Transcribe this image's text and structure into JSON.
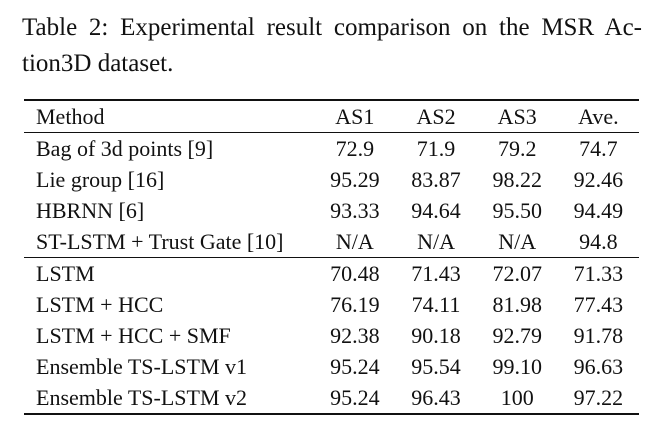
{
  "caption": {
    "line1": "Table 2: Experimental result comparison on the MSR Ac-",
    "line2": "tion3D dataset."
  },
  "table": {
    "headers": [
      "Method",
      "AS1",
      "AS2",
      "AS3",
      "Ave."
    ],
    "groups": [
      [
        {
          "method": "Bag of 3d points [9]",
          "values": [
            "72.9",
            "71.9",
            "79.2",
            "74.7"
          ],
          "bold": []
        },
        {
          "method": "Lie group [16]",
          "values": [
            "95.29",
            "83.87",
            "98.22",
            "92.46"
          ],
          "bold": [
            0
          ]
        },
        {
          "method": "HBRNN [6]",
          "values": [
            "93.33",
            "94.64",
            "95.50",
            "94.49"
          ],
          "bold": []
        },
        {
          "method": "ST-LSTM + Trust Gate [10]",
          "values": [
            "N/A",
            "N/A",
            "N/A",
            "94.8"
          ],
          "bold": []
        }
      ],
      [
        {
          "method": "LSTM",
          "values": [
            "70.48",
            "71.43",
            "72.07",
            "71.33"
          ],
          "bold": []
        },
        {
          "method": "LSTM + HCC",
          "values": [
            "76.19",
            "74.11",
            "81.98",
            "77.43"
          ],
          "bold": []
        },
        {
          "method": "LSTM + HCC + SMF",
          "values": [
            "92.38",
            "90.18",
            "92.79",
            "91.78"
          ],
          "bold": []
        },
        {
          "method": "Ensemble TS-LSTM v1",
          "values": [
            "95.24",
            "95.54",
            "99.10",
            "96.63"
          ],
          "bold": []
        },
        {
          "method": "Ensemble TS-LSTM v2",
          "values": [
            "95.24",
            "96.43",
            "100",
            "97.22"
          ],
          "bold": [
            1,
            2,
            3
          ]
        }
      ]
    ]
  }
}
